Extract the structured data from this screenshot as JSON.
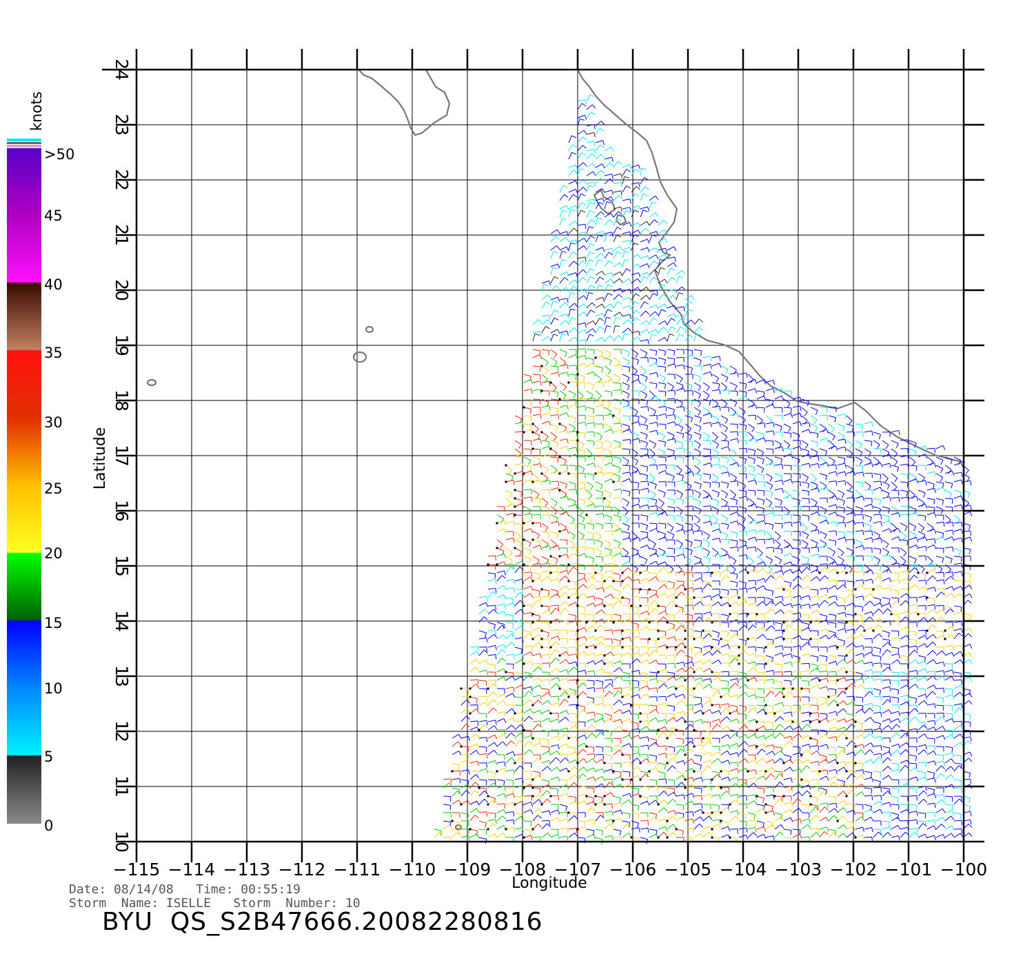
{
  "map": {
    "lon_range": [
      -115,
      -100
    ],
    "lat_range": [
      10,
      24
    ],
    "lon_ticks": [
      "-115",
      "-114",
      "-113",
      "-112",
      "-111",
      "-110",
      "-109",
      "-108",
      "-107",
      "-106",
      "-105",
      "-104",
      "-103",
      "-102",
      "-101",
      "-100"
    ],
    "lat_ticks": [
      "10",
      "11",
      "12",
      "13",
      "14",
      "15",
      "16",
      "17",
      "18",
      "19",
      "20",
      "21",
      "22",
      "23",
      "24"
    ],
    "xlabel": "Longitude",
    "ylabel": "Latitude",
    "coast_color": "#777777",
    "grid": true
  },
  "colorbar": {
    "title": "knots",
    "labels": [
      ">50",
      "45",
      "40",
      "35",
      "30",
      "25",
      "20",
      "15",
      "10",
      "5",
      "0"
    ],
    "colors": {
      "gray": "#888888",
      "cyan": "#00e8f8",
      "blue": "#0000ff",
      "green": "#00cc00",
      "yellow": "#ffd000",
      "red": "#ff2000",
      "brown": "#8b4a30",
      "magenta": "#ff00ff",
      "purple": "#6a00c8"
    }
  },
  "footer": {
    "line1": "Date: 08/14/08   Time: 00:55:19",
    "line2": "Storm  Name: ISELLE   Storm  Number: 10",
    "filename": "BYU  QS_S2B47666.20082280816"
  }
}
